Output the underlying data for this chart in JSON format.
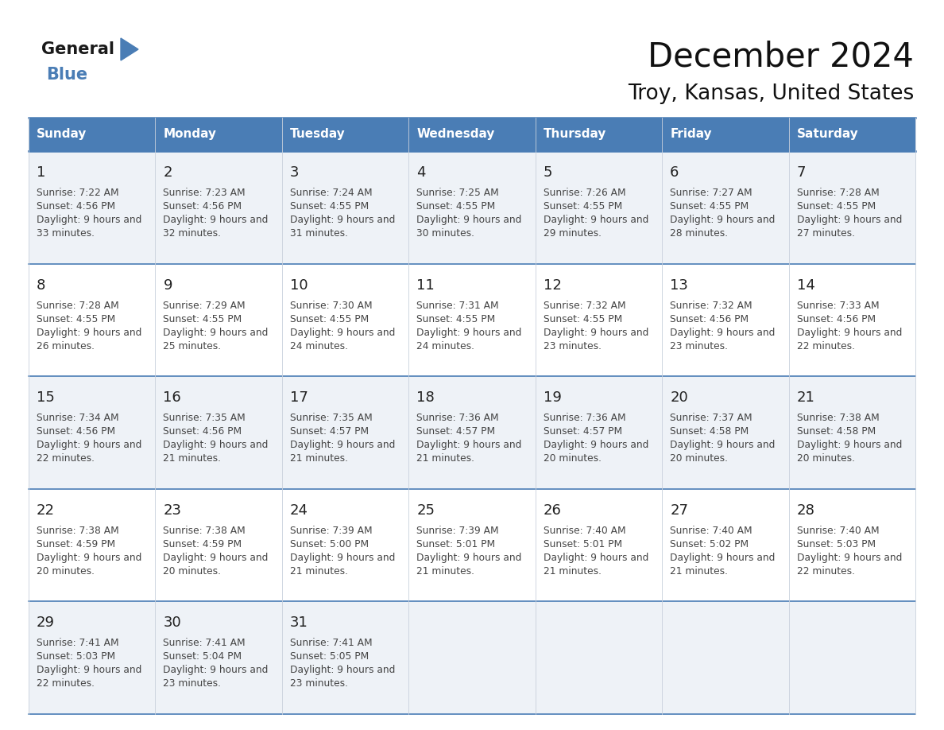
{
  "title": "December 2024",
  "subtitle": "Troy, Kansas, United States",
  "header_color": "#4A7DB5",
  "header_text_color": "#FFFFFF",
  "day_names": [
    "Sunday",
    "Monday",
    "Tuesday",
    "Wednesday",
    "Thursday",
    "Friday",
    "Saturday"
  ],
  "background_color": "#FFFFFF",
  "cell_bg_even": "#EEF2F7",
  "cell_bg_odd": "#FFFFFF",
  "grid_color": "#4A7DB5",
  "text_color": "#444444",
  "date_color": "#222222",
  "days": [
    {
      "date": 1,
      "col": 0,
      "row": 0,
      "sunrise": "7:22 AM",
      "sunset": "4:56 PM",
      "daylight": "9 hours and 33 minutes."
    },
    {
      "date": 2,
      "col": 1,
      "row": 0,
      "sunrise": "7:23 AM",
      "sunset": "4:56 PM",
      "daylight": "9 hours and 32 minutes."
    },
    {
      "date": 3,
      "col": 2,
      "row": 0,
      "sunrise": "7:24 AM",
      "sunset": "4:55 PM",
      "daylight": "9 hours and 31 minutes."
    },
    {
      "date": 4,
      "col": 3,
      "row": 0,
      "sunrise": "7:25 AM",
      "sunset": "4:55 PM",
      "daylight": "9 hours and 30 minutes."
    },
    {
      "date": 5,
      "col": 4,
      "row": 0,
      "sunrise": "7:26 AM",
      "sunset": "4:55 PM",
      "daylight": "9 hours and 29 minutes."
    },
    {
      "date": 6,
      "col": 5,
      "row": 0,
      "sunrise": "7:27 AM",
      "sunset": "4:55 PM",
      "daylight": "9 hours and 28 minutes."
    },
    {
      "date": 7,
      "col": 6,
      "row": 0,
      "sunrise": "7:28 AM",
      "sunset": "4:55 PM",
      "daylight": "9 hours and 27 minutes."
    },
    {
      "date": 8,
      "col": 0,
      "row": 1,
      "sunrise": "7:28 AM",
      "sunset": "4:55 PM",
      "daylight": "9 hours and 26 minutes."
    },
    {
      "date": 9,
      "col": 1,
      "row": 1,
      "sunrise": "7:29 AM",
      "sunset": "4:55 PM",
      "daylight": "9 hours and 25 minutes."
    },
    {
      "date": 10,
      "col": 2,
      "row": 1,
      "sunrise": "7:30 AM",
      "sunset": "4:55 PM",
      "daylight": "9 hours and 24 minutes."
    },
    {
      "date": 11,
      "col": 3,
      "row": 1,
      "sunrise": "7:31 AM",
      "sunset": "4:55 PM",
      "daylight": "9 hours and 24 minutes."
    },
    {
      "date": 12,
      "col": 4,
      "row": 1,
      "sunrise": "7:32 AM",
      "sunset": "4:55 PM",
      "daylight": "9 hours and 23 minutes."
    },
    {
      "date": 13,
      "col": 5,
      "row": 1,
      "sunrise": "7:32 AM",
      "sunset": "4:56 PM",
      "daylight": "9 hours and 23 minutes."
    },
    {
      "date": 14,
      "col": 6,
      "row": 1,
      "sunrise": "7:33 AM",
      "sunset": "4:56 PM",
      "daylight": "9 hours and 22 minutes."
    },
    {
      "date": 15,
      "col": 0,
      "row": 2,
      "sunrise": "7:34 AM",
      "sunset": "4:56 PM",
      "daylight": "9 hours and 22 minutes."
    },
    {
      "date": 16,
      "col": 1,
      "row": 2,
      "sunrise": "7:35 AM",
      "sunset": "4:56 PM",
      "daylight": "9 hours and 21 minutes."
    },
    {
      "date": 17,
      "col": 2,
      "row": 2,
      "sunrise": "7:35 AM",
      "sunset": "4:57 PM",
      "daylight": "9 hours and 21 minutes."
    },
    {
      "date": 18,
      "col": 3,
      "row": 2,
      "sunrise": "7:36 AM",
      "sunset": "4:57 PM",
      "daylight": "9 hours and 21 minutes."
    },
    {
      "date": 19,
      "col": 4,
      "row": 2,
      "sunrise": "7:36 AM",
      "sunset": "4:57 PM",
      "daylight": "9 hours and 20 minutes."
    },
    {
      "date": 20,
      "col": 5,
      "row": 2,
      "sunrise": "7:37 AM",
      "sunset": "4:58 PM",
      "daylight": "9 hours and 20 minutes."
    },
    {
      "date": 21,
      "col": 6,
      "row": 2,
      "sunrise": "7:38 AM",
      "sunset": "4:58 PM",
      "daylight": "9 hours and 20 minutes."
    },
    {
      "date": 22,
      "col": 0,
      "row": 3,
      "sunrise": "7:38 AM",
      "sunset": "4:59 PM",
      "daylight": "9 hours and 20 minutes."
    },
    {
      "date": 23,
      "col": 1,
      "row": 3,
      "sunrise": "7:38 AM",
      "sunset": "4:59 PM",
      "daylight": "9 hours and 20 minutes."
    },
    {
      "date": 24,
      "col": 2,
      "row": 3,
      "sunrise": "7:39 AM",
      "sunset": "5:00 PM",
      "daylight": "9 hours and 21 minutes."
    },
    {
      "date": 25,
      "col": 3,
      "row": 3,
      "sunrise": "7:39 AM",
      "sunset": "5:01 PM",
      "daylight": "9 hours and 21 minutes."
    },
    {
      "date": 26,
      "col": 4,
      "row": 3,
      "sunrise": "7:40 AM",
      "sunset": "5:01 PM",
      "daylight": "9 hours and 21 minutes."
    },
    {
      "date": 27,
      "col": 5,
      "row": 3,
      "sunrise": "7:40 AM",
      "sunset": "5:02 PM",
      "daylight": "9 hours and 21 minutes."
    },
    {
      "date": 28,
      "col": 6,
      "row": 3,
      "sunrise": "7:40 AM",
      "sunset": "5:03 PM",
      "daylight": "9 hours and 22 minutes."
    },
    {
      "date": 29,
      "col": 0,
      "row": 4,
      "sunrise": "7:41 AM",
      "sunset": "5:03 PM",
      "daylight": "9 hours and 22 minutes."
    },
    {
      "date": 30,
      "col": 1,
      "row": 4,
      "sunrise": "7:41 AM",
      "sunset": "5:04 PM",
      "daylight": "9 hours and 23 minutes."
    },
    {
      "date": 31,
      "col": 2,
      "row": 4,
      "sunrise": "7:41 AM",
      "sunset": "5:05 PM",
      "daylight": "9 hours and 23 minutes."
    }
  ],
  "num_rows": 5,
  "num_cols": 7,
  "logo_color_general": "#1a1a1a",
  "logo_color_blue": "#4A7DB5",
  "logo_triangle_color": "#4A7DB5"
}
